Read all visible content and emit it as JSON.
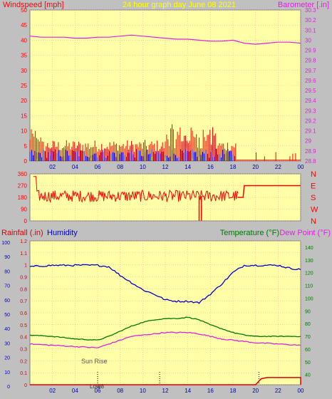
{
  "colors": {
    "background": "#c0c0c0",
    "plot_bg": "#ffffa8",
    "grid": "#ff9999",
    "wind_speed": "#ff0000",
    "wind_avg": "#0000ff",
    "wind_low": "#008000",
    "barometer": "#e020e0",
    "direction": "#ff0000",
    "humidity": "#0000cc",
    "temperature": "#007800",
    "dew_point": "#e020e0",
    "rainfall": "#dd0000",
    "title": "#ffff00",
    "axis_text": "#0000aa"
  },
  "chart_data": [
    {
      "type": "line",
      "name": "wind-barometer",
      "title": "24 hour graph day   June 08 2021",
      "left_label": "Windspeed [mph]",
      "right_label": "Barometer [.in]",
      "x_ticks": [
        "02",
        "04",
        "06",
        "08",
        "10",
        "12",
        "14",
        "16",
        "18",
        "20",
        "22",
        "00"
      ],
      "y_left_ticks": [
        "0",
        "5",
        "10",
        "15",
        "20",
        "25",
        "30",
        "35",
        "40",
        "45",
        "50"
      ],
      "y_left_range": [
        0,
        50
      ],
      "y_right_ticks": [
        "28.8",
        "28.9",
        "29",
        "29.1",
        "29.2",
        "29.3",
        "29.4",
        "29.5",
        "29.6",
        "29.7",
        "29.8",
        "29.9",
        "30",
        "30.1",
        "30.2",
        "30.3"
      ],
      "y_right_range": [
        28.8,
        30.3
      ],
      "x_range": [
        0,
        24
      ],
      "barometer": [
        [
          0,
          30.04
        ],
        [
          1,
          30.03
        ],
        [
          2,
          30.03
        ],
        [
          3,
          30.03
        ],
        [
          4,
          30.02
        ],
        [
          5,
          30.02
        ],
        [
          6,
          30.03
        ],
        [
          7,
          30.03
        ],
        [
          8,
          30.04
        ],
        [
          9,
          30.05
        ],
        [
          10,
          30.04
        ],
        [
          11,
          30.03
        ],
        [
          12,
          30.02
        ],
        [
          13,
          30.01
        ],
        [
          14,
          30.01
        ],
        [
          15,
          30
        ],
        [
          16,
          29.99
        ],
        [
          17,
          29.99
        ],
        [
          18,
          30
        ],
        [
          19,
          29.97
        ],
        [
          20,
          29.96
        ],
        [
          21,
          29.97
        ],
        [
          22,
          29.98
        ],
        [
          23,
          29.98
        ],
        [
          24,
          29.97
        ]
      ]
    },
    {
      "type": "line",
      "name": "wind-direction",
      "y_left_ticks": [
        "0",
        "90",
        "180",
        "270",
        "360"
      ],
      "y_range": [
        0,
        360
      ],
      "right_labels": [
        "N",
        "W",
        "S",
        "E",
        "N"
      ],
      "x_range": [
        0,
        24
      ],
      "direction_after_18": 270
    },
    {
      "type": "line",
      "name": "humidity-temperature",
      "left_label_1": "Rainfall (.in)",
      "left_label_2": "Humidity",
      "right_label_1": "Temperature (°F)",
      "right_label_2": "Dew Point (°F)",
      "x_ticks": [
        "02",
        "04",
        "06",
        "08",
        "10",
        "12",
        "14",
        "16",
        "18",
        "20",
        "22",
        "00"
      ],
      "rain_ticks": [
        "0",
        "0.1",
        "0.2",
        "0.3",
        "0.4",
        "0.5",
        "0.6",
        "0.7",
        "0.8",
        "0.9",
        "1",
        "1.1",
        "1.2"
      ],
      "rain_range": [
        0,
        1.2
      ],
      "humidity_ticks": [
        "0",
        "10",
        "20",
        "30",
        "40",
        "50",
        "60",
        "70",
        "80",
        "90",
        "100"
      ],
      "humidity_range": [
        0,
        100
      ],
      "temp_ticks": [
        "40",
        "50",
        "60",
        "70",
        "80",
        "90",
        "100",
        "110",
        "120",
        "130",
        "140"
      ],
      "temp_range": [
        32,
        145
      ],
      "x_range": [
        0,
        24
      ],
      "annotations": {
        "sunrise": "Sun Rise",
        "low": "Low",
        "date": "08"
      },
      "humidity": [
        [
          0,
          82
        ],
        [
          2,
          83
        ],
        [
          4,
          83
        ],
        [
          6,
          83
        ],
        [
          7,
          82
        ],
        [
          8,
          76
        ],
        [
          9,
          71
        ],
        [
          10,
          66
        ],
        [
          11,
          63
        ],
        [
          12,
          59
        ],
        [
          13,
          58
        ],
        [
          14,
          58
        ],
        [
          15,
          57
        ],
        [
          16,
          63
        ],
        [
          17,
          70
        ],
        [
          18,
          78
        ],
        [
          19,
          83
        ],
        [
          20,
          83
        ],
        [
          22,
          83
        ],
        [
          23,
          81
        ],
        [
          24,
          80
        ]
      ],
      "temperature": [
        [
          0,
          71
        ],
        [
          2,
          70
        ],
        [
          4,
          68
        ],
        [
          6,
          67
        ],
        [
          7,
          70
        ],
        [
          8,
          74
        ],
        [
          9,
          78
        ],
        [
          10,
          81
        ],
        [
          11,
          83
        ],
        [
          12,
          84
        ],
        [
          13,
          84
        ],
        [
          14,
          85
        ],
        [
          15,
          83
        ],
        [
          16,
          79
        ],
        [
          17,
          76
        ],
        [
          18,
          73
        ],
        [
          19,
          71
        ],
        [
          20,
          70
        ],
        [
          22,
          70
        ],
        [
          24,
          70
        ]
      ],
      "dew_point": [
        [
          0,
          64
        ],
        [
          2,
          63
        ],
        [
          4,
          62
        ],
        [
          6,
          61
        ],
        [
          7,
          64
        ],
        [
          8,
          67
        ],
        [
          9,
          70
        ],
        [
          10,
          71
        ],
        [
          11,
          72
        ],
        [
          12,
          73
        ],
        [
          13,
          73
        ],
        [
          14,
          73
        ],
        [
          15,
          72
        ],
        [
          16,
          70
        ],
        [
          17,
          68
        ],
        [
          18,
          67
        ],
        [
          19,
          66
        ],
        [
          20,
          65
        ],
        [
          22,
          64
        ],
        [
          24,
          63
        ]
      ],
      "rainfall": [
        [
          0,
          0
        ],
        [
          20,
          0
        ],
        [
          20.5,
          0.05
        ],
        [
          21,
          0.06
        ],
        [
          22,
          0.06
        ],
        [
          23,
          0.06
        ],
        [
          24,
          0.06
        ],
        [
          24,
          0
        ]
      ]
    }
  ]
}
